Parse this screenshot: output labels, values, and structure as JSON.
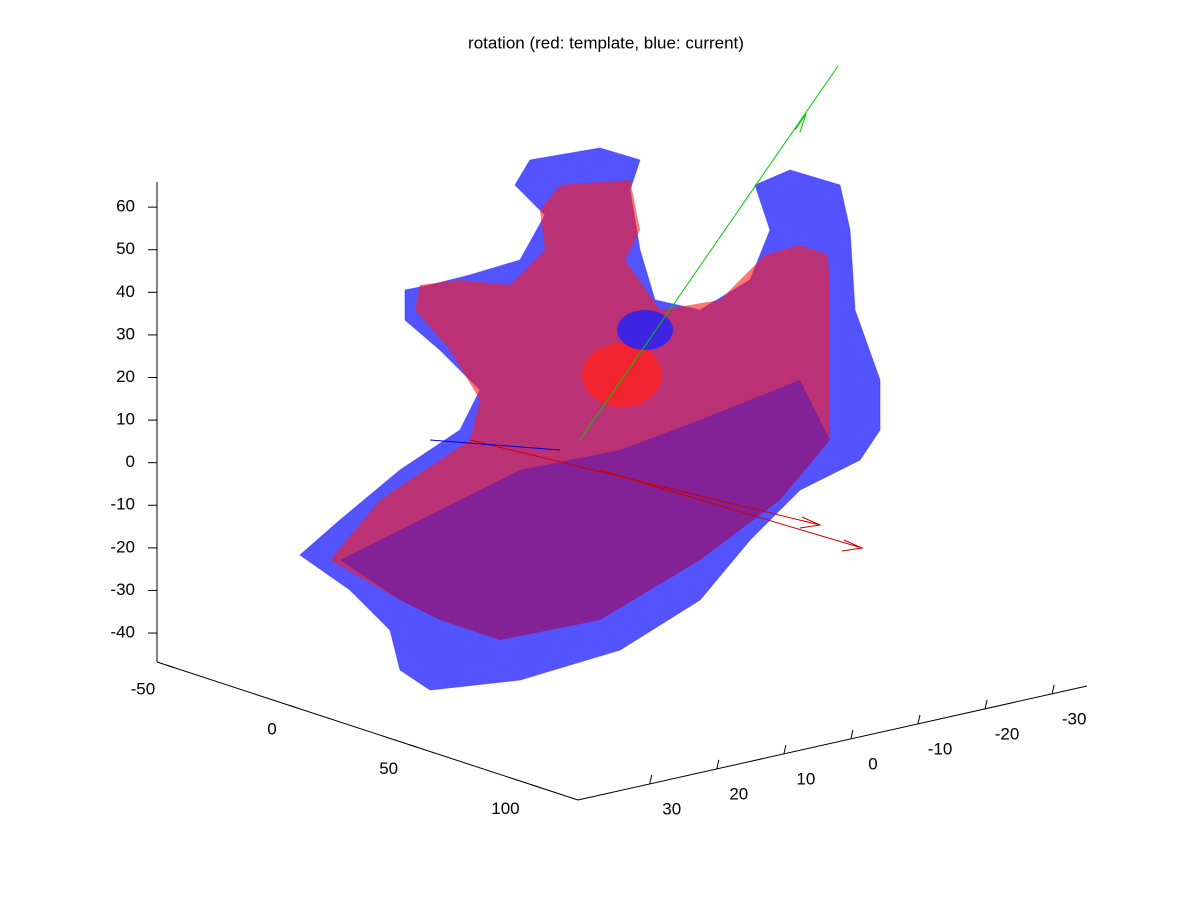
{
  "chart_data": {
    "type": "surface3d",
    "title": "rotation (red: template, blue: current)",
    "xlim": [
      40.7,
      -35.2
    ],
    "xticks": [
      30,
      20,
      10,
      0,
      -10,
      -20,
      -30
    ],
    "ylim": [
      -57.5,
      115.8
    ],
    "yticks": [
      -50,
      0,
      50,
      100
    ],
    "zlim": [
      -46.8,
      65.9
    ],
    "zticks": [
      60,
      50,
      40,
      30,
      20,
      10,
      0,
      -10,
      -20,
      -30,
      -40
    ]
  }
}
